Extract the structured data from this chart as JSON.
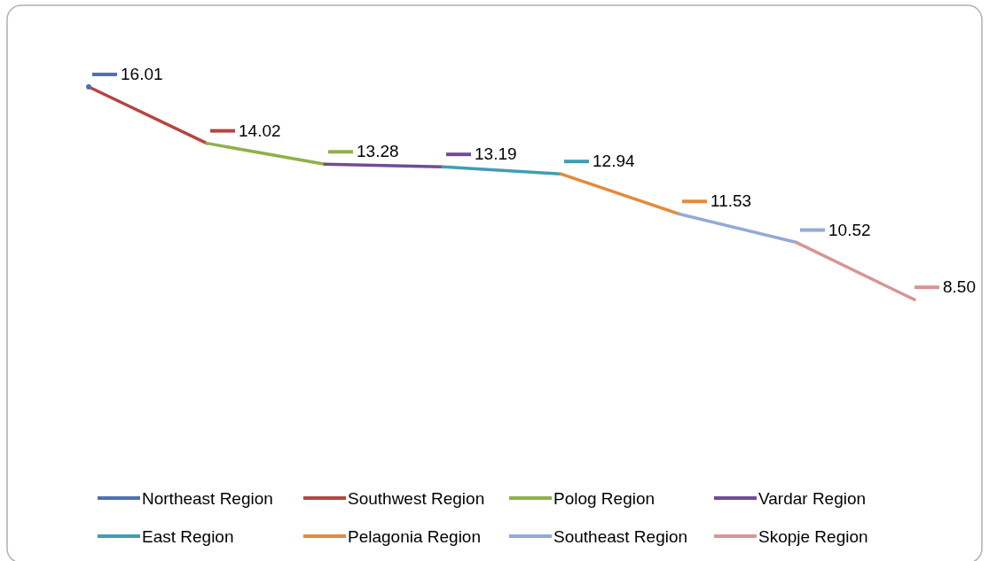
{
  "chart_data": {
    "type": "line",
    "categories": [
      null,
      null,
      null,
      null,
      null,
      null,
      null,
      null
    ],
    "legend": "bottom",
    "series": [
      {
        "name": "Northeast Region",
        "color": "#4a72b0",
        "marker": "circle",
        "values": [
          16.01,
          null,
          null,
          null,
          null,
          null,
          null,
          null
        ],
        "value_labels": [
          "16.01",
          null,
          null,
          null,
          null,
          null,
          null,
          null
        ]
      },
      {
        "name": "Southwest Region",
        "color": "#b8443f",
        "values": [
          16.01,
          14.02,
          null,
          null,
          null,
          null,
          null,
          null
        ],
        "value_labels": [
          null,
          "14.02",
          null,
          null,
          null,
          null,
          null,
          null
        ]
      },
      {
        "name": "Polog Region",
        "color": "#8fb04a",
        "values": [
          null,
          14.02,
          13.28,
          null,
          null,
          null,
          null,
          null
        ],
        "value_labels": [
          null,
          null,
          "13.28",
          null,
          null,
          null,
          null,
          null
        ]
      },
      {
        "name": "Vardar Region",
        "color": "#6f4e94",
        "values": [
          null,
          null,
          13.28,
          13.19,
          null,
          null,
          null,
          null
        ],
        "value_labels": [
          null,
          null,
          null,
          "13.19",
          null,
          null,
          null,
          null
        ]
      },
      {
        "name": "East Region",
        "color": "#3f9db5",
        "values": [
          null,
          null,
          null,
          13.19,
          12.94,
          null,
          null,
          null
        ],
        "value_labels": [
          null,
          null,
          null,
          null,
          "12.94",
          null,
          null,
          null
        ]
      },
      {
        "name": "Pelagonia Region",
        "color": "#e58a3a",
        "values": [
          null,
          null,
          null,
          null,
          12.94,
          11.53,
          null,
          null
        ],
        "value_labels": [
          null,
          null,
          null,
          null,
          null,
          "11.53",
          null,
          null
        ]
      },
      {
        "name": "Southeast Region",
        "color": "#93aad6",
        "values": [
          null,
          null,
          null,
          null,
          null,
          11.53,
          10.52,
          null
        ],
        "value_labels": [
          null,
          null,
          null,
          null,
          null,
          null,
          "10.52",
          null
        ]
      },
      {
        "name": "Skopje Region",
        "color": "#d89595",
        "values": [
          null,
          null,
          null,
          null,
          null,
          null,
          10.52,
          8.5
        ],
        "value_labels": [
          null,
          null,
          null,
          null,
          null,
          null,
          null,
          "8.50"
        ]
      }
    ]
  }
}
